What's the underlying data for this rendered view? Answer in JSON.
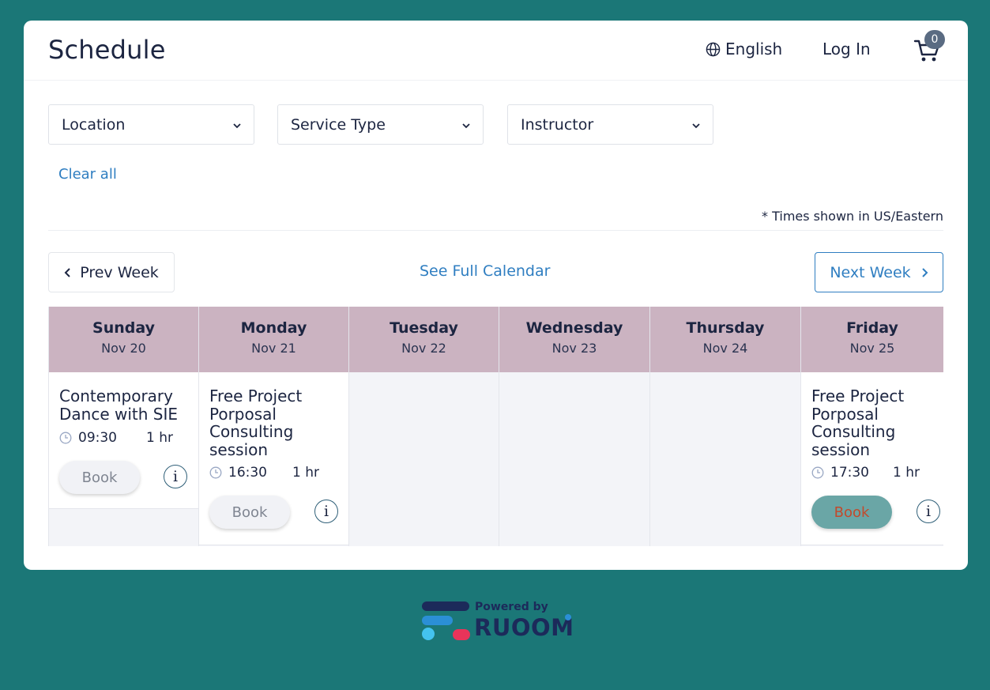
{
  "header": {
    "title": "Schedule",
    "language": "English",
    "login": "Log In",
    "cart_count": "0"
  },
  "filters": [
    {
      "label": "Location"
    },
    {
      "label": "Service Type"
    },
    {
      "label": "Instructor"
    }
  ],
  "clear_all": "Clear all",
  "timezone_note": "* Times shown in US/Eastern",
  "nav": {
    "prev": "Prev Week",
    "full_calendar": "See Full Calendar",
    "next": "Next Week"
  },
  "days": [
    {
      "name": "Sunday",
      "date": "Nov 20"
    },
    {
      "name": "Monday",
      "date": "Nov 21"
    },
    {
      "name": "Tuesday",
      "date": "Nov 22"
    },
    {
      "name": "Wednesday",
      "date": "Nov 23"
    },
    {
      "name": "Thursday",
      "date": "Nov 24"
    },
    {
      "name": "Friday",
      "date": "Nov 25"
    }
  ],
  "events": [
    {
      "title": "Contemporary Dance with SIE",
      "time": "09:30",
      "duration": "1 hr",
      "book": "Book",
      "info": "i"
    },
    {
      "title": "Free Project Porposal Consulting session",
      "time": "16:30",
      "duration": "1 hr",
      "book": "Book",
      "info": "i"
    },
    {
      "title": "Free Project Porposal Consulting session",
      "time": "17:30",
      "duration": "1 hr",
      "book": "Book",
      "info": "i"
    }
  ],
  "footer": {
    "powered_by": "Powered by",
    "brand": "RUOOM"
  },
  "colors": {
    "page_bg": "#1b7777",
    "card_bg": "#ffffff",
    "day_header_bg": "#cbb3c1",
    "link": "#2f7ec1",
    "text": "#1c2541",
    "active_book_bg": "#6aa6a6"
  }
}
